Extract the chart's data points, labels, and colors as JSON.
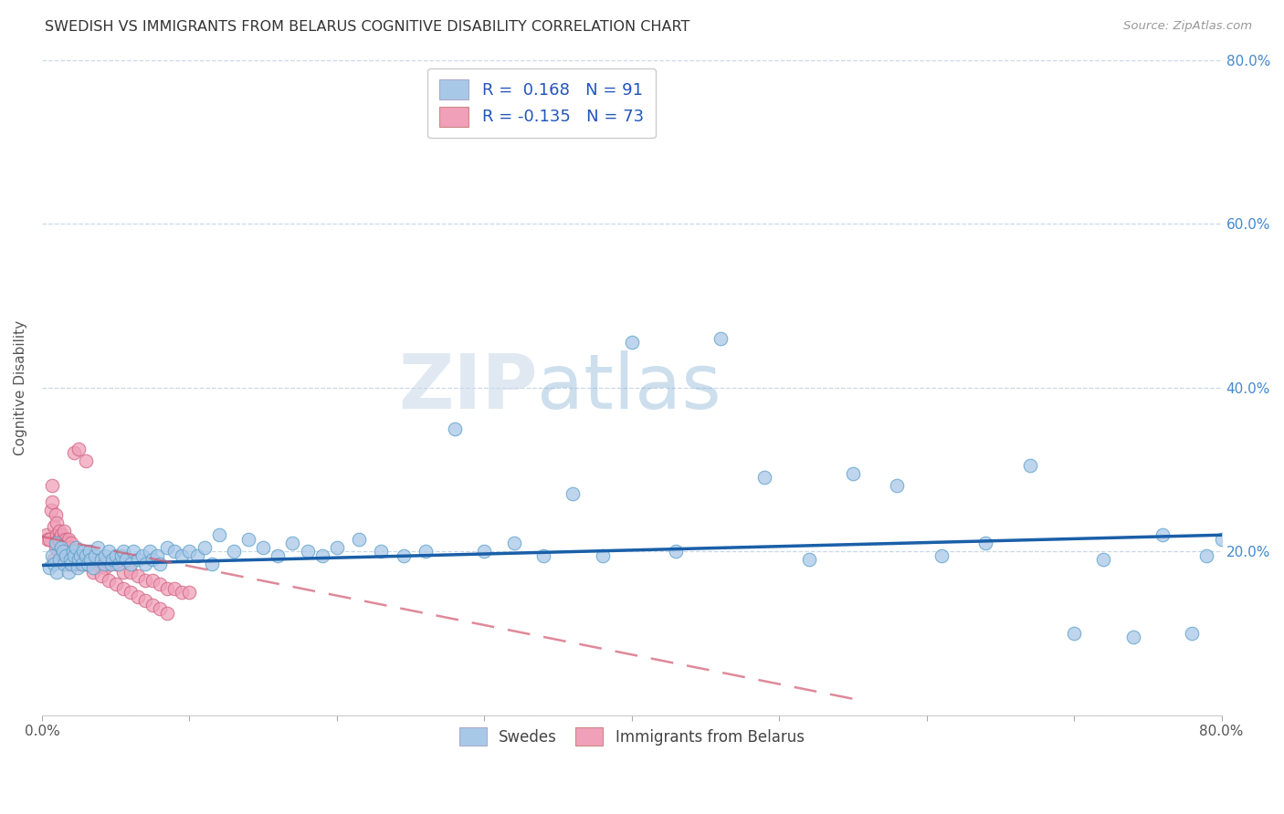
{
  "title": "SWEDISH VS IMMIGRANTS FROM BELARUS COGNITIVE DISABILITY CORRELATION CHART",
  "source": "Source: ZipAtlas.com",
  "ylabel": "Cognitive Disability",
  "xlim": [
    0.0,
    0.8
  ],
  "ylim": [
    0.0,
    0.8
  ],
  "swedes_color": "#a8c8e8",
  "swedes_edge_color": "#5a9fc8",
  "immigrants_color": "#f0a0b8",
  "immigrants_edge_color": "#d06080",
  "trend_swedes_color": "#1a5fa8",
  "trend_immigrants_color": "#d05870",
  "R_swedes": 0.168,
  "N_swedes": 91,
  "R_immigrants": -0.135,
  "N_immigrants": 73,
  "legend_label_swedes": "Swedes",
  "legend_label_immigrants": "Immigrants from Belarus",
  "watermark_zip": "ZIP",
  "watermark_atlas": "atlas",
  "grid_color": "#c8d8e8",
  "background_color": "#ffffff",
  "swedes_x": [
    0.005,
    0.007,
    0.008,
    0.009,
    0.01,
    0.012,
    0.013,
    0.014,
    0.015,
    0.016,
    0.018,
    0.019,
    0.02,
    0.021,
    0.022,
    0.023,
    0.024,
    0.025,
    0.026,
    0.027,
    0.028,
    0.03,
    0.031,
    0.032,
    0.033,
    0.035,
    0.036,
    0.038,
    0.04,
    0.042,
    0.043,
    0.045,
    0.047,
    0.048,
    0.05,
    0.052,
    0.054,
    0.055,
    0.057,
    0.06,
    0.062,
    0.065,
    0.068,
    0.07,
    0.073,
    0.075,
    0.078,
    0.08,
    0.085,
    0.09,
    0.095,
    0.1,
    0.105,
    0.11,
    0.115,
    0.12,
    0.13,
    0.14,
    0.15,
    0.16,
    0.17,
    0.18,
    0.19,
    0.2,
    0.215,
    0.23,
    0.245,
    0.26,
    0.28,
    0.3,
    0.32,
    0.34,
    0.36,
    0.38,
    0.4,
    0.43,
    0.46,
    0.49,
    0.52,
    0.55,
    0.58,
    0.61,
    0.64,
    0.67,
    0.7,
    0.72,
    0.74,
    0.76,
    0.78,
    0.79,
    0.8
  ],
  "swedes_y": [
    0.18,
    0.195,
    0.185,
    0.21,
    0.175,
    0.19,
    0.205,
    0.2,
    0.185,
    0.195,
    0.175,
    0.19,
    0.185,
    0.2,
    0.195,
    0.205,
    0.18,
    0.19,
    0.195,
    0.185,
    0.2,
    0.195,
    0.185,
    0.2,
    0.19,
    0.18,
    0.195,
    0.205,
    0.19,
    0.185,
    0.195,
    0.2,
    0.185,
    0.19,
    0.195,
    0.185,
    0.195,
    0.2,
    0.19,
    0.185,
    0.2,
    0.19,
    0.195,
    0.185,
    0.2,
    0.19,
    0.195,
    0.185,
    0.205,
    0.2,
    0.195,
    0.2,
    0.195,
    0.205,
    0.185,
    0.22,
    0.2,
    0.215,
    0.205,
    0.195,
    0.21,
    0.2,
    0.195,
    0.205,
    0.215,
    0.2,
    0.195,
    0.2,
    0.35,
    0.2,
    0.21,
    0.195,
    0.27,
    0.195,
    0.455,
    0.2,
    0.46,
    0.29,
    0.19,
    0.295,
    0.28,
    0.195,
    0.21,
    0.305,
    0.1,
    0.19,
    0.095,
    0.22,
    0.1,
    0.195,
    0.215
  ],
  "immigrants_x": [
    0.003,
    0.004,
    0.005,
    0.006,
    0.007,
    0.007,
    0.008,
    0.008,
    0.009,
    0.009,
    0.01,
    0.01,
    0.01,
    0.011,
    0.011,
    0.012,
    0.012,
    0.013,
    0.013,
    0.014,
    0.014,
    0.015,
    0.015,
    0.016,
    0.016,
    0.017,
    0.017,
    0.018,
    0.018,
    0.019,
    0.019,
    0.02,
    0.02,
    0.021,
    0.021,
    0.022,
    0.023,
    0.024,
    0.025,
    0.026,
    0.028,
    0.03,
    0.032,
    0.035,
    0.038,
    0.04,
    0.043,
    0.046,
    0.05,
    0.055,
    0.06,
    0.065,
    0.07,
    0.075,
    0.08,
    0.085,
    0.09,
    0.095,
    0.1,
    0.022,
    0.025,
    0.03,
    0.035,
    0.04,
    0.045,
    0.05,
    0.055,
    0.06,
    0.065,
    0.07,
    0.075,
    0.08,
    0.085
  ],
  "immigrants_y": [
    0.22,
    0.215,
    0.215,
    0.25,
    0.26,
    0.28,
    0.19,
    0.23,
    0.205,
    0.245,
    0.21,
    0.22,
    0.235,
    0.215,
    0.2,
    0.225,
    0.215,
    0.205,
    0.22,
    0.195,
    0.215,
    0.195,
    0.225,
    0.2,
    0.215,
    0.185,
    0.21,
    0.215,
    0.195,
    0.205,
    0.185,
    0.195,
    0.21,
    0.195,
    0.185,
    0.19,
    0.185,
    0.195,
    0.19,
    0.185,
    0.185,
    0.185,
    0.195,
    0.185,
    0.185,
    0.19,
    0.18,
    0.185,
    0.185,
    0.175,
    0.175,
    0.17,
    0.165,
    0.165,
    0.16,
    0.155,
    0.155,
    0.15,
    0.15,
    0.32,
    0.325,
    0.31,
    0.175,
    0.17,
    0.165,
    0.16,
    0.155,
    0.15,
    0.145,
    0.14,
    0.135,
    0.13,
    0.125
  ],
  "trend_blue_x0": 0.0,
  "trend_blue_y0": 0.183,
  "trend_blue_x1": 0.8,
  "trend_blue_y1": 0.22,
  "trend_pink_x0": 0.0,
  "trend_pink_y0": 0.218,
  "trend_pink_x1": 0.55,
  "trend_pink_y1": 0.02
}
